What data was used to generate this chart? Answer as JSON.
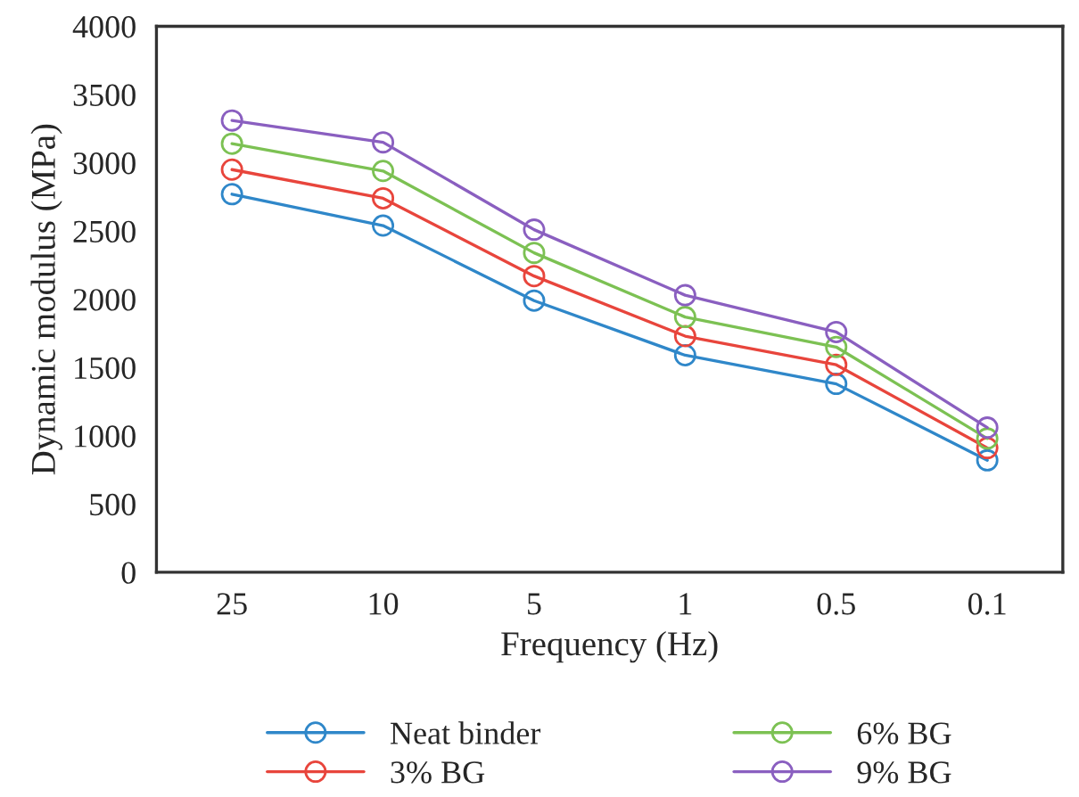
{
  "chart_data": {
    "type": "line",
    "xlabel": "Frequency (Hz)",
    "ylabel": "Dynamic modulus (MPa)",
    "categories": [
      "25",
      "10",
      "5",
      "1",
      "0.5",
      "0.1"
    ],
    "series": [
      {
        "name": "Neat binder",
        "color": "#2f87c9",
        "values": [
          2770,
          2540,
          1990,
          1590,
          1380,
          820
        ]
      },
      {
        "name": "3% BG",
        "color": "#e8453c",
        "values": [
          2950,
          2740,
          2170,
          1730,
          1520,
          910
        ]
      },
      {
        "name": "6% BG",
        "color": "#7cc153",
        "values": [
          3140,
          2940,
          2340,
          1870,
          1650,
          980
        ]
      },
      {
        "name": "9% BG",
        "color": "#8a5fc0",
        "values": [
          3310,
          3150,
          2510,
          2030,
          1760,
          1060
        ]
      }
    ],
    "ylim": [
      0,
      4000
    ],
    "yticks": [
      0,
      500,
      1000,
      1500,
      2000,
      2500,
      3000,
      3500,
      4000
    ],
    "grid": false,
    "legend": "bottom",
    "marker": "circle",
    "line_style": "solid"
  }
}
